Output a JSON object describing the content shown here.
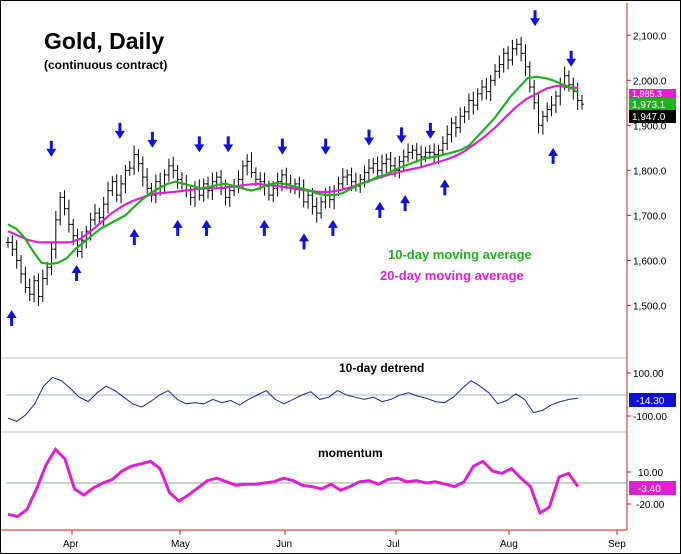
{
  "title": "Gold, Daily",
  "subtitle": "(continuous contract)",
  "legend": {
    "ma10": "10-day moving average",
    "ma20": "20-day moving average"
  },
  "colors": {
    "ma10": "#22b022",
    "ma20": "#e020d0",
    "arrow": "#1010e0",
    "axis": "#cc2222",
    "price": "#000000",
    "detrend": "#1a2a9a",
    "momentum": "#e020d0",
    "badge_detrend_bg": "#1010d0",
    "badge_momentum_bg": "#e020d0",
    "badge_price_bg": "#000000"
  },
  "chart_data": [
    {
      "type": "candlestick",
      "title": "Gold, Daily",
      "subtitle": "(continuous contract)",
      "x_axis": {
        "ticks": [
          "Apr",
          "May",
          "Jun",
          "Jul",
          "Aug",
          "Sep"
        ]
      },
      "y_axis": {
        "ticks": [
          1500,
          1600,
          1700,
          1800,
          1900,
          2000,
          2100
        ],
        "tick_labels": [
          "1,500.0",
          "1,600.0",
          "1,700.0",
          "1,800.0",
          "1,900.0",
          "2,000.0",
          "2,100.0"
        ],
        "range": [
          1450,
          2125
        ],
        "side": "right"
      },
      "price_bars_close": [
        1640,
        1625,
        1600,
        1570,
        1540,
        1525,
        1555,
        1520,
        1560,
        1585,
        1625,
        1690,
        1740,
        1715,
        1680,
        1655,
        1620,
        1645,
        1665,
        1690,
        1705,
        1695,
        1725,
        1755,
        1775,
        1745,
        1770,
        1800,
        1805,
        1835,
        1815,
        1785,
        1760,
        1745,
        1775,
        1765,
        1790,
        1810,
        1800,
        1780,
        1770,
        1755,
        1740,
        1760,
        1745,
        1770,
        1755,
        1775,
        1785,
        1760,
        1740,
        1755,
        1765,
        1780,
        1810,
        1820,
        1795,
        1780,
        1775,
        1765,
        1745,
        1760,
        1775,
        1790,
        1770,
        1765,
        1770,
        1760,
        1730,
        1745,
        1720,
        1705,
        1730,
        1745,
        1735,
        1755,
        1770,
        1785,
        1790,
        1775,
        1765,
        1780,
        1795,
        1805,
        1815,
        1800,
        1815,
        1825,
        1810,
        1800,
        1820,
        1830,
        1840,
        1845,
        1835,
        1830,
        1840,
        1840,
        1835,
        1845,
        1860,
        1880,
        1905,
        1895,
        1920,
        1930,
        1955,
        1945,
        1970,
        1985,
        1975,
        2000,
        2020,
        2035,
        2060,
        2045,
        2070,
        2080,
        2060,
        2030,
        1985,
        1950,
        1900,
        1920,
        1935,
        1945,
        1965,
        1990,
        2010,
        1990,
        1975,
        1955,
        1947
      ],
      "series": [
        {
          "name": "10-day moving average",
          "color": "#22b022",
          "values": [
            1680,
            1670,
            1650,
            1620,
            1595,
            1592,
            1595,
            1605,
            1625,
            1640,
            1655,
            1670,
            1680,
            1690,
            1700,
            1718,
            1735,
            1750,
            1760,
            1770,
            1775,
            1770,
            1765,
            1760,
            1763,
            1768,
            1770,
            1765,
            1760,
            1755,
            1760,
            1768,
            1772,
            1770,
            1765,
            1760,
            1755,
            1748,
            1745,
            1745,
            1750,
            1760,
            1770,
            1775,
            1785,
            1790,
            1800,
            1808,
            1815,
            1822,
            1828,
            1830,
            1835,
            1840,
            1845,
            1855,
            1875,
            1895,
            1915,
            1940,
            1965,
            1985,
            2005,
            2008,
            2005,
            2000,
            1992,
            1985,
            1973
          ]
        },
        {
          "name": "20-day moving average",
          "color": "#e020d0",
          "values": [
            1665,
            1655,
            1645,
            1640,
            1640,
            1640,
            1640,
            1648,
            1665,
            1685,
            1705,
            1720,
            1732,
            1740,
            1748,
            1750,
            1752,
            1755,
            1758,
            1760,
            1760,
            1762,
            1765,
            1768,
            1770,
            1768,
            1765,
            1762,
            1758,
            1755,
            1752,
            1752,
            1756,
            1762,
            1770,
            1778,
            1785,
            1792,
            1798,
            1803,
            1808,
            1815,
            1822,
            1830,
            1842,
            1858,
            1875,
            1895,
            1918,
            1940,
            1958,
            1970,
            1982,
            1988,
            1985,
            1983
          ]
        }
      ],
      "last_values": {
        "ma20_label": "1,985.3",
        "ma10_label": "1,973.1",
        "close_label": "1,947.0"
      },
      "annotations": "blue down arrows mark cycle tops; blue up arrows mark cycle bottoms"
    },
    {
      "type": "line",
      "title": "10-day detrend",
      "y_axis": {
        "ticks": [
          100,
          -100
        ],
        "tick_labels": [
          "100.00",
          "-100.00"
        ],
        "range": [
          -150,
          150
        ]
      },
      "last_value_label": "-14.30",
      "values": [
        -105,
        -120,
        -90,
        -40,
        40,
        80,
        65,
        30,
        -10,
        -30,
        10,
        40,
        20,
        -10,
        -40,
        -55,
        -30,
        0,
        20,
        -20,
        -40,
        -35,
        -40,
        -20,
        -35,
        -25,
        -45,
        -20,
        0,
        20,
        -20,
        -40,
        -20,
        0,
        15,
        -20,
        -10,
        20,
        0,
        -10,
        -20,
        -10,
        -30,
        -20,
        0,
        10,
        -5,
        -15,
        -30,
        -35,
        -10,
        30,
        65,
        40,
        10,
        -40,
        -25,
        5,
        -20,
        -80,
        -70,
        -45,
        -30,
        -20,
        -14
      ]
    },
    {
      "type": "line",
      "title": "momentum",
      "y_axis": {
        "ticks": [
          10,
          -20
        ],
        "tick_labels": [
          "10.00",
          "-20.00"
        ],
        "range": [
          -28,
          30
        ]
      },
      "last_value_label": "-3.40",
      "values": [
        -26,
        -28,
        -22,
        -5,
        15,
        28,
        20,
        -5,
        -10,
        -4,
        0,
        3,
        10,
        14,
        16,
        18,
        12,
        -8,
        -15,
        -10,
        -4,
        2,
        4,
        1,
        -2,
        -1,
        -1,
        0,
        1,
        4,
        2,
        -2,
        -3,
        -5,
        -1,
        -6,
        -3,
        1,
        2,
        -1,
        3,
        4,
        1,
        2,
        0,
        1,
        -1,
        -3,
        1,
        14,
        18,
        10,
        8,
        12,
        4,
        -3,
        -25,
        -20,
        5,
        8,
        -3
      ]
    }
  ],
  "axis_labels": {
    "months": [
      "Apr",
      "May",
      "Jun",
      "Jul",
      "Aug",
      "Sep"
    ],
    "price": [
      "2,100.0",
      "2,000.0",
      "1,900.0",
      "1,800.0",
      "1,700.0",
      "1,600.0",
      "1,500.0"
    ],
    "detrend": [
      "100.00",
      "-100.00"
    ],
    "momentum": [
      "10.00",
      "-20.00"
    ]
  },
  "badges": {
    "ma20": "1,985.3",
    "ma10": "1,973.1",
    "close": "1,947.0",
    "detrend": "-14.30",
    "momentum": "-3.40"
  },
  "panel_labels": {
    "detrend": "10-day detrend",
    "momentum": "momentum"
  },
  "arrows": {
    "tops": [
      {
        "bar": 12,
        "price": 1830
      },
      {
        "bar": 31,
        "price": 1870
      },
      {
        "bar": 40,
        "price": 1850
      },
      {
        "bar": 53,
        "price": 1840
      },
      {
        "bar": 61,
        "price": 1840
      },
      {
        "bar": 76,
        "price": 1835
      },
      {
        "bar": 88,
        "price": 1835
      },
      {
        "bar": 100,
        "price": 1855
      },
      {
        "bar": 109,
        "price": 1860
      },
      {
        "bar": 117,
        "price": 1870
      },
      {
        "bar": 146,
        "price": 2120
      },
      {
        "bar": 156,
        "price": 2030
      }
    ],
    "bottoms": [
      {
        "bar": 1,
        "price": 1490
      },
      {
        "bar": 19,
        "price": 1590
      },
      {
        "bar": 35,
        "price": 1670
      },
      {
        "bar": 47,
        "price": 1690
      },
      {
        "bar": 55,
        "price": 1690
      },
      {
        "bar": 71,
        "price": 1690
      },
      {
        "bar": 82,
        "price": 1660
      },
      {
        "bar": 90,
        "price": 1690
      },
      {
        "bar": 103,
        "price": 1730
      },
      {
        "bar": 110,
        "price": 1745
      },
      {
        "bar": 121,
        "price": 1780
      },
      {
        "bar": 151,
        "price": 1850
      }
    ]
  }
}
